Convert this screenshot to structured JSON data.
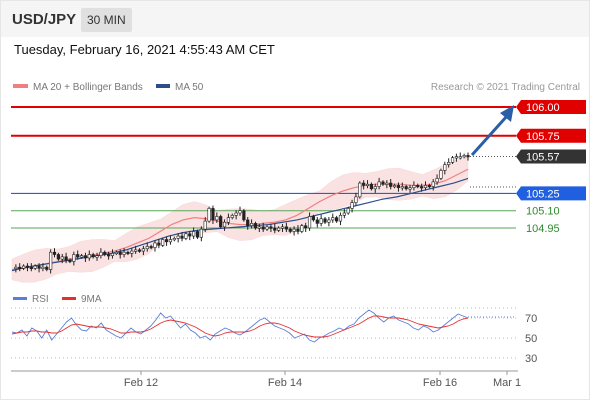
{
  "header": {
    "symbol": "USD/JPY",
    "timeframe": "30 MIN"
  },
  "datetime": "Tuesday, February 16, 2021 4:55:43 AM CET",
  "legend": {
    "ma20": {
      "label": "MA 20 + Bollinger Bands",
      "color": "#f08080"
    },
    "ma50": {
      "label": "MA 50",
      "color": "#2c4f8c"
    },
    "rsi": {
      "label": "RSI",
      "color": "#5b7fd6"
    },
    "rsi_ma": {
      "label": "9MA",
      "color": "#e53030"
    }
  },
  "copyright": "Research © 2021 Trading Central",
  "colors": {
    "up": "#ffffff",
    "down": "#222222",
    "resistance": "#e00000",
    "pivot": "#1f5fe0",
    "support": "#5aa55a",
    "arrow": "#2a5fa8",
    "last": "#333333"
  },
  "chart_data": [
    {
      "type": "line",
      "title": "USD/JPY 30 MIN",
      "x_ticks": [
        "Feb 12",
        "Feb 14",
        "Feb 16",
        "Mar 1"
      ],
      "ylim": [
        104.5,
        106.2
      ],
      "levels": [
        {
          "value": 106.0,
          "label": "106.00",
          "kind": "resistance"
        },
        {
          "value": 105.75,
          "label": "105.75",
          "kind": "resistance"
        },
        {
          "value": 105.57,
          "label": "105.57",
          "kind": "last"
        },
        {
          "value": 105.25,
          "label": "105.25",
          "kind": "pivot"
        },
        {
          "value": 105.1,
          "label": "105.10",
          "kind": "support"
        },
        {
          "value": 104.95,
          "label": "104.95",
          "kind": "support"
        }
      ],
      "series": [
        {
          "name": "Price",
          "values": [
            104.6,
            104.61,
            104.6,
            104.62,
            104.61,
            104.6,
            104.62,
            104.6,
            104.61,
            104.59,
            104.74,
            104.72,
            104.68,
            104.7,
            104.67,
            104.66,
            104.72,
            104.7,
            104.71,
            104.69,
            104.72,
            104.7,
            104.71,
            104.74,
            104.72,
            104.71,
            104.73,
            104.74,
            104.72,
            104.74,
            104.73,
            104.75,
            104.76,
            104.75,
            104.77,
            104.79,
            104.78,
            104.82,
            104.8,
            104.85,
            104.83,
            104.85,
            104.86,
            104.88,
            104.86,
            104.9,
            104.88,
            104.92,
            104.87,
            104.94,
            105.01,
            105.12,
            105.02,
            105.05,
            104.96,
            105.0,
            105.04,
            105.06,
            105.08,
            105.1,
            105.02,
            104.97,
            104.99,
            104.95,
            104.96,
            104.94,
            104.96,
            104.95,
            104.93,
            104.95,
            104.96,
            104.94,
            104.92,
            104.94,
            104.92,
            104.97,
            104.95,
            105.05,
            105.02,
            104.99,
            105.03,
            105.0,
            105.02,
            105.04,
            105.01,
            105.06,
            105.08,
            105.12,
            105.17,
            105.22,
            105.34,
            105.32,
            105.33,
            105.29,
            105.31,
            105.35,
            105.33,
            105.34,
            105.31,
            105.32,
            105.3,
            105.31,
            105.29,
            105.3,
            105.32,
            105.31,
            105.3,
            105.32,
            105.31,
            105.35,
            105.38,
            105.45,
            105.5,
            105.52,
            105.56,
            105.57,
            105.57,
            105.58,
            105.57
          ]
        },
        {
          "name": "MA 20",
          "values": [
            104.59,
            104.6,
            104.62,
            104.64,
            104.66,
            104.68,
            104.7,
            104.71,
            104.73,
            104.75,
            104.78,
            104.82,
            104.86,
            104.92,
            104.98,
            105.02,
            105.04,
            105.03,
            105.01,
            104.99,
            104.98,
            104.98,
            104.99,
            105.0,
            105.02,
            105.06,
            105.12,
            105.18,
            105.23,
            105.27,
            105.3,
            105.32,
            105.33,
            105.33,
            105.33,
            105.32,
            105.32,
            105.33,
            105.36,
            105.41,
            105.46
          ]
        },
        {
          "name": "MA 50",
          "values": [
            104.58,
            104.61,
            104.63,
            104.65,
            104.67,
            104.69,
            104.71,
            104.73,
            104.76,
            104.8,
            104.84,
            104.88,
            104.91,
            104.93,
            104.94,
            104.95,
            104.96,
            104.97,
            104.98,
            105.0,
            105.02,
            105.05,
            105.08,
            105.11,
            105.14,
            105.17,
            105.2,
            105.22,
            105.25,
            105.28,
            105.31,
            105.34,
            105.38
          ]
        },
        {
          "name": "RSI",
          "values": [
            56,
            55,
            58,
            52,
            60,
            57,
            50,
            58,
            48,
            54,
            60,
            66,
            70,
            63,
            58,
            57,
            62,
            60,
            65,
            58,
            55,
            52,
            50,
            55,
            60,
            56,
            54,
            58,
            62,
            68,
            75,
            70,
            72,
            66,
            60,
            64,
            58,
            55,
            50,
            52,
            48,
            54,
            57,
            60,
            58,
            55,
            53,
            56,
            60,
            64,
            68,
            70,
            66,
            62,
            60,
            58,
            55,
            50,
            52,
            54,
            48,
            46,
            50,
            52,
            55,
            57,
            60,
            58,
            62,
            64,
            70,
            74,
            78,
            75,
            70,
            66,
            70,
            72,
            68,
            66,
            64,
            60,
            58,
            62,
            60,
            56,
            58,
            62,
            66,
            70,
            74,
            72,
            70
          ]
        },
        {
          "name": "9MA",
          "values": [
            54,
            55,
            56,
            56,
            57,
            57,
            56,
            56,
            55,
            55,
            57,
            60,
            63,
            64,
            63,
            62,
            61,
            61,
            61,
            60,
            59,
            57,
            55,
            55,
            56,
            56,
            56,
            57,
            59,
            62,
            65,
            67,
            68,
            67,
            66,
            65,
            63,
            61,
            58,
            55,
            53,
            52,
            53,
            55,
            56,
            56,
            56,
            56,
            57,
            59,
            62,
            64,
            65,
            65,
            64,
            62,
            60,
            57,
            55,
            53,
            52,
            51,
            51,
            51,
            52,
            54,
            56,
            58,
            60,
            62,
            64,
            67,
            70,
            72,
            72,
            71,
            70,
            70,
            70,
            69,
            68,
            66,
            64,
            63,
            62,
            61,
            60,
            61,
            62,
            64,
            67,
            69,
            70
          ]
        }
      ]
    },
    {
      "type": "line",
      "title": "RSI",
      "ylim": [
        20,
        80
      ],
      "y_ticks": [
        70,
        50,
        30
      ]
    }
  ]
}
